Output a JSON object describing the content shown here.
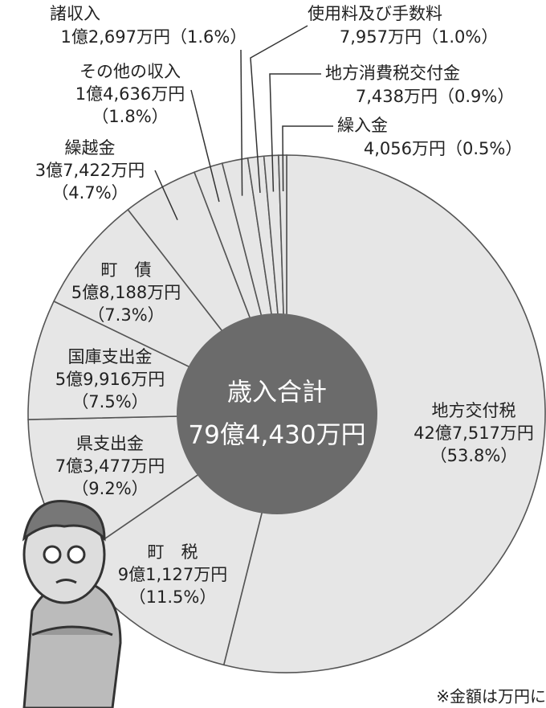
{
  "chart_data": {
    "type": "pie",
    "center_title": "歳入合計",
    "center_value": "79億4,430万円",
    "categories": [
      "地方交付税",
      "町　税",
      "県支出金",
      "国庫支出金",
      "町　債",
      "繰越金",
      "その他の収入",
      "諸収入",
      "使用料及び手数料",
      "地方消費税交付金",
      "繰入金"
    ],
    "amounts": [
      "42億7,517万円",
      "9億1,127万円",
      "7億3,477万円",
      "5億9,916万円",
      "5億8,188万円",
      "3億7,422万円",
      "1億4,636万円",
      "1億2,697万円",
      "7,957万円",
      "7,438万円",
      "4,056万円"
    ],
    "values": [
      53.8,
      11.5,
      9.2,
      7.5,
      7.3,
      4.7,
      1.8,
      1.6,
      1.0,
      0.9,
      0.5
    ],
    "value_labels": [
      "（53.8%）",
      "（11.5%）",
      "（9.2%）",
      "（7.5%）",
      "（7.3%）",
      "（4.7%）",
      "（1.8%）",
      "（1.6%）",
      "（1.0%）",
      "（0.9%）",
      "（0.5%）"
    ],
    "color": "#e6e6e6",
    "note": "※金額は万円に"
  }
}
